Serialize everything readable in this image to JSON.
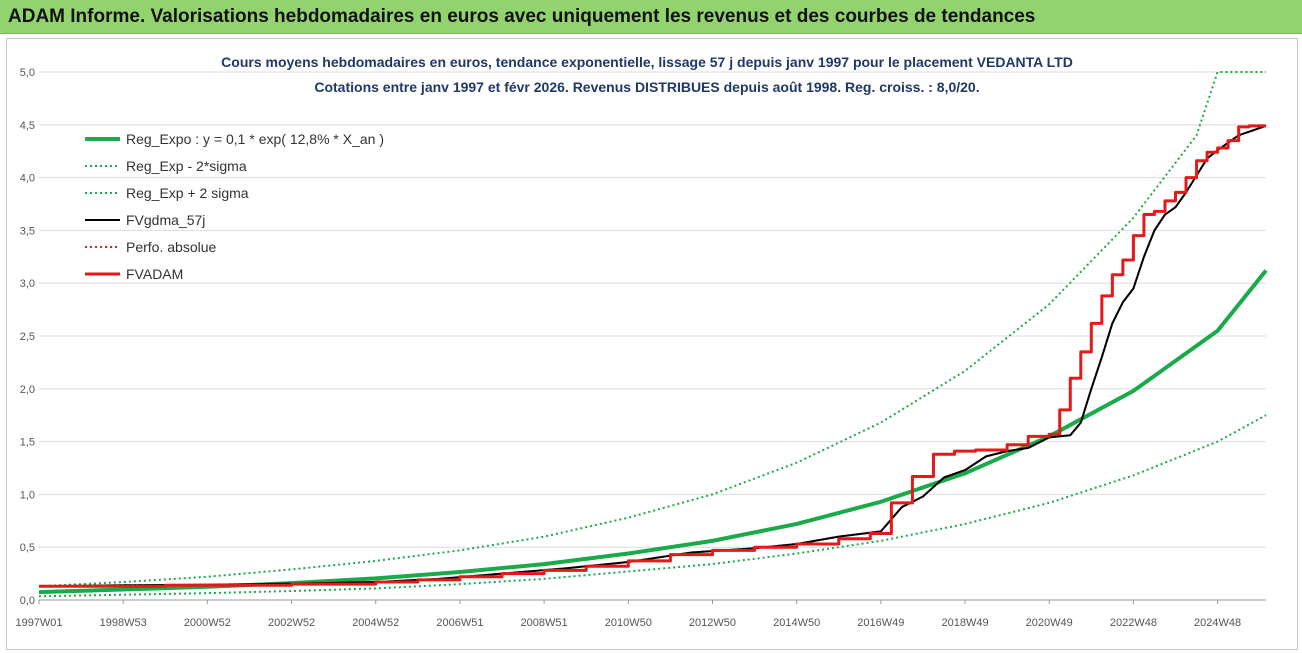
{
  "banner": {
    "title": "ADAM Informe. Valorisations hebdomadaires en euros avec uniquement les revenus et des courbes de tendances"
  },
  "chart_data": {
    "type": "line",
    "title": "Cours moyens hebdomadaires en euros, tendance exponentielle, lissage 57 j depuis janv 1997 pour le placement VEDANTA LTD",
    "subtitle": "Cotations entre janv 1997 et févr 2026. Revenus DISTRIBUES depuis août 1998. Reg. croiss. : 8,0/20.",
    "xlabel": "",
    "ylabel": "",
    "xlim": [
      1997.0,
      2026.15
    ],
    "ylim": [
      0,
      5.0
    ],
    "grid": true,
    "legend": "top-left",
    "x_tick_labels": [
      "1997W01",
      "1998W53",
      "2000W52",
      "2002W52",
      "2004W52",
      "2006W51",
      "2008W51",
      "2010W50",
      "2012W50",
      "2014W50",
      "2016W49",
      "2018W49",
      "2020W49",
      "2022W48",
      "2024W48"
    ],
    "x_tick_positions": [
      1997.0,
      1999.0,
      2001.0,
      2003.0,
      2005.0,
      2007.0,
      2009.0,
      2011.0,
      2013.0,
      2015.0,
      2017.0,
      2019.0,
      2021.0,
      2023.0,
      2025.0
    ],
    "y_ticks": [
      0,
      0.5,
      1.0,
      1.5,
      2.0,
      2.5,
      3.0,
      3.5,
      4.0,
      4.5,
      5.0
    ],
    "y_tick_labels": [
      "0,0",
      "0,5",
      "1,0",
      "1,5",
      "2,0",
      "2,5",
      "3,0",
      "3,5",
      "4,0",
      "4,5",
      "5,0"
    ],
    "series": [
      {
        "name": "Reg_Expo : y = 0,1 * exp( 12,8% *  X_an )",
        "color": "#1aaa4a",
        "style": "solid-thick",
        "x": [
          1997.0,
          1999.0,
          2001.0,
          2003.0,
          2005.0,
          2007.0,
          2009.0,
          2011.0,
          2013.0,
          2015.0,
          2017.0,
          2019.0,
          2021.0,
          2023.0,
          2025.0,
          2026.15
        ],
        "values": [
          0.075,
          0.1,
          0.125,
          0.16,
          0.205,
          0.265,
          0.34,
          0.44,
          0.56,
          0.72,
          0.93,
          1.2,
          1.55,
          1.98,
          2.55,
          3.12
        ]
      },
      {
        "name": "Reg_Exp - 2*sigma",
        "color": "#1aaa4a",
        "style": "dotted",
        "x": [
          1997.0,
          1999.0,
          2001.0,
          2003.0,
          2005.0,
          2007.0,
          2009.0,
          2011.0,
          2013.0,
          2015.0,
          2017.0,
          2019.0,
          2021.0,
          2023.0,
          2025.0,
          2026.15
        ],
        "values": [
          0.035,
          0.05,
          0.065,
          0.085,
          0.11,
          0.15,
          0.2,
          0.27,
          0.34,
          0.44,
          0.56,
          0.72,
          0.92,
          1.18,
          1.5,
          1.75
        ]
      },
      {
        "name": "Reg_Exp + 2 sigma",
        "color": "#1aaa4a",
        "style": "dotted",
        "x": [
          1997.0,
          1999.0,
          2001.0,
          2003.0,
          2005.0,
          2007.0,
          2009.0,
          2011.0,
          2013.0,
          2015.0,
          2017.0,
          2019.0,
          2021.0,
          2023.0,
          2024.5,
          2025.0,
          2026.15
        ],
        "values": [
          0.13,
          0.17,
          0.22,
          0.29,
          0.37,
          0.47,
          0.6,
          0.78,
          1.0,
          1.3,
          1.68,
          2.17,
          2.8,
          3.62,
          4.4,
          5.0,
          5.0
        ]
      },
      {
        "name": "FVgdma_57j",
        "color": "#000000",
        "style": "solid",
        "x": [
          1997.0,
          1999.0,
          2001.0,
          2003.0,
          2005.0,
          2006.5,
          2008.0,
          2009.5,
          2011.0,
          2012.5,
          2014.0,
          2015.0,
          2016.0,
          2017.0,
          2017.5,
          2018.0,
          2018.5,
          2019.0,
          2019.5,
          2020.0,
          2020.5,
          2021.0,
          2021.5,
          2021.75,
          2022.0,
          2022.25,
          2022.5,
          2022.75,
          2023.0,
          2023.25,
          2023.5,
          2023.75,
          2024.0,
          2024.25,
          2024.5,
          2024.75,
          2025.0,
          2025.5,
          2026.15
        ],
        "values": [
          0.13,
          0.14,
          0.145,
          0.155,
          0.17,
          0.2,
          0.25,
          0.3,
          0.36,
          0.45,
          0.49,
          0.53,
          0.6,
          0.65,
          0.88,
          0.98,
          1.16,
          1.23,
          1.36,
          1.41,
          1.44,
          1.54,
          1.56,
          1.68,
          2.0,
          2.3,
          2.62,
          2.82,
          2.95,
          3.25,
          3.5,
          3.65,
          3.72,
          3.86,
          4.02,
          4.18,
          4.26,
          4.4,
          4.49
        ]
      },
      {
        "name": "Perfo. absolue",
        "color": "#e02020",
        "style": "dotted",
        "x": [
          1997.0,
          1999.0,
          2001.0,
          2003.0,
          2005.0,
          2006.5,
          2008.0,
          2009.5,
          2011.0,
          2012.5,
          2014.0,
          2015.0,
          2016.0,
          2017.0,
          2017.5,
          2018.0,
          2018.5,
          2019.0,
          2019.5,
          2020.0,
          2020.5,
          2021.0,
          2021.5,
          2021.75,
          2022.0,
          2022.25,
          2022.5,
          2022.75,
          2023.0,
          2023.25,
          2023.5,
          2023.75,
          2024.0,
          2024.25,
          2024.5,
          2024.75,
          2025.0,
          2025.5,
          2026.15
        ],
        "values": [
          0.13,
          0.14,
          0.145,
          0.155,
          0.17,
          0.2,
          0.25,
          0.3,
          0.36,
          0.45,
          0.49,
          0.53,
          0.6,
          0.65,
          0.88,
          0.98,
          1.16,
          1.23,
          1.36,
          1.41,
          1.44,
          1.54,
          1.56,
          1.68,
          2.0,
          2.3,
          2.62,
          2.82,
          2.95,
          3.25,
          3.5,
          3.65,
          3.72,
          3.86,
          4.02,
          4.18,
          4.26,
          4.4,
          4.49
        ]
      },
      {
        "name": "FVADAM",
        "color": "#e41a1a",
        "style": "step",
        "x": [
          1997.0,
          2000.0,
          2003.0,
          2005.0,
          2006.0,
          2007.0,
          2008.0,
          2009.0,
          2010.0,
          2011.0,
          2012.0,
          2013.0,
          2014.0,
          2015.0,
          2016.0,
          2016.75,
          2017.25,
          2017.75,
          2018.25,
          2018.75,
          2019.25,
          2020.0,
          2020.5,
          2021.0,
          2021.25,
          2021.5,
          2021.75,
          2022.0,
          2022.25,
          2022.5,
          2022.75,
          2023.0,
          2023.25,
          2023.5,
          2023.75,
          2024.0,
          2024.25,
          2024.5,
          2024.75,
          2025.0,
          2025.25,
          2025.5,
          2025.75,
          2026.15
        ],
        "values": [
          0.13,
          0.14,
          0.15,
          0.17,
          0.19,
          0.22,
          0.25,
          0.28,
          0.32,
          0.37,
          0.43,
          0.47,
          0.5,
          0.53,
          0.58,
          0.63,
          0.92,
          1.17,
          1.38,
          1.41,
          1.42,
          1.47,
          1.55,
          1.57,
          1.8,
          2.1,
          2.35,
          2.62,
          2.88,
          3.08,
          3.22,
          3.45,
          3.65,
          3.68,
          3.78,
          3.86,
          4.0,
          4.16,
          4.24,
          4.28,
          4.35,
          4.48,
          4.49,
          4.49
        ]
      }
    ]
  }
}
